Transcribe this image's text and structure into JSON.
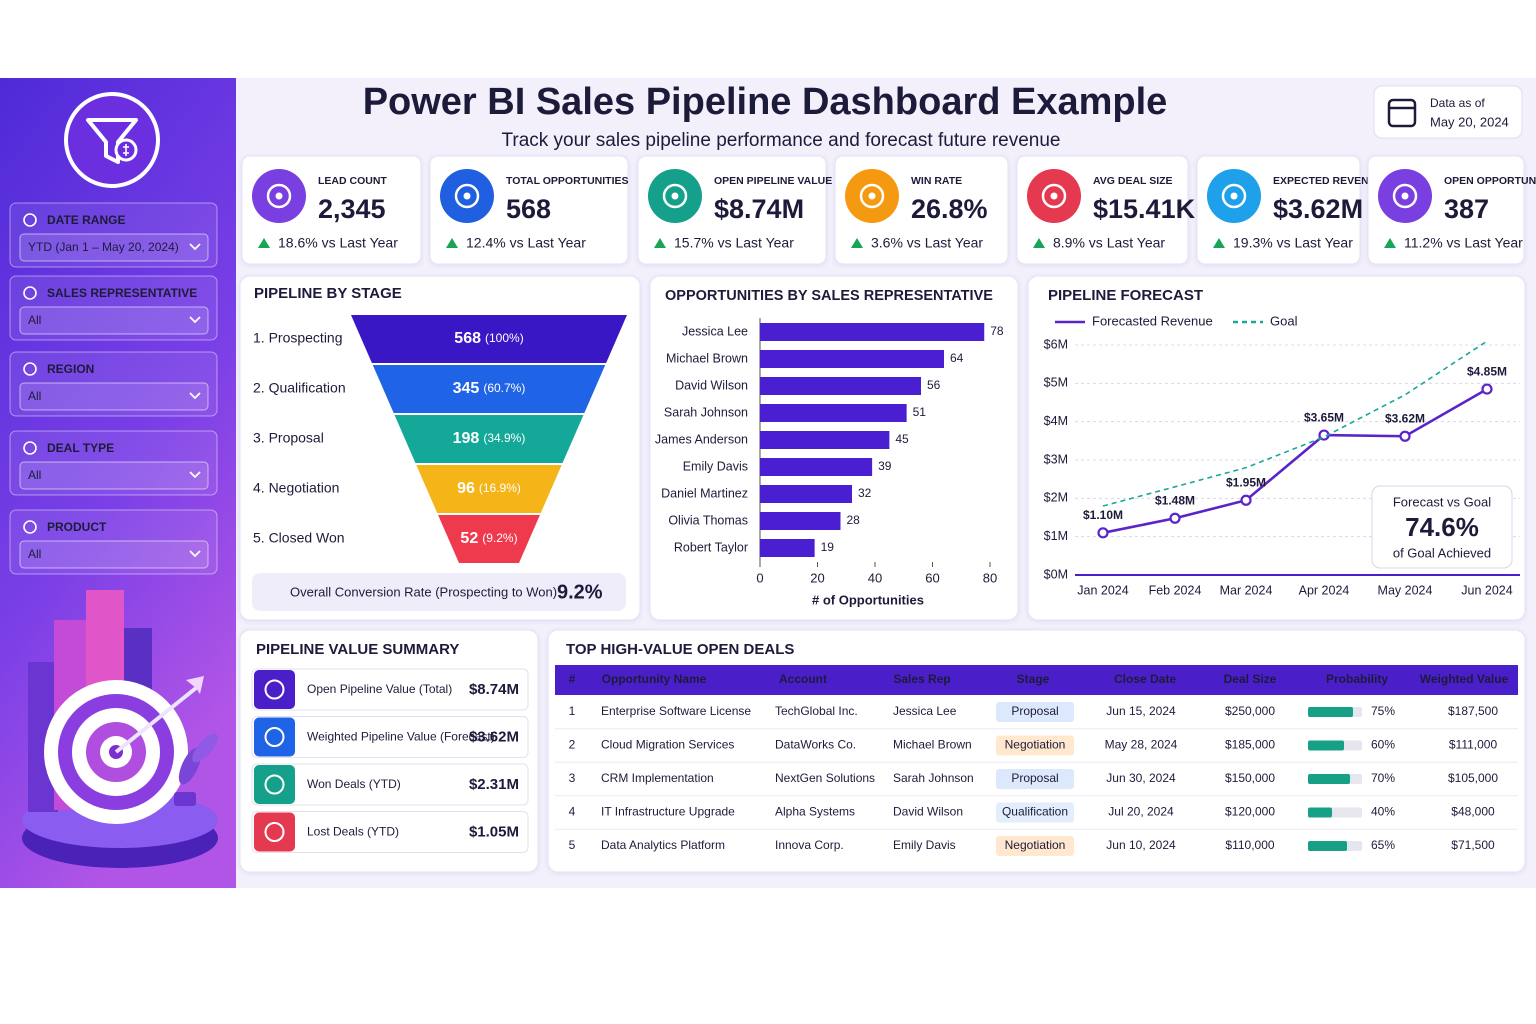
{
  "header": {
    "title": "Power BI Sales Pipeline Dashboard Example",
    "subtitle": "Track your sales pipeline performance and forecast future revenue",
    "date_label": "Data as of",
    "date": "May 20, 2024"
  },
  "filters": [
    {
      "label": "DATE RANGE",
      "value": "YTD (Jan 1 – May 20, 2024)"
    },
    {
      "label": "SALES REPRESENTATIVE",
      "value": "All"
    },
    {
      "label": "REGION",
      "value": "All"
    },
    {
      "label": "DEAL TYPE",
      "value": "All"
    },
    {
      "label": "PRODUCT",
      "value": "All"
    }
  ],
  "kpis": [
    {
      "label": "LEAD COUNT",
      "value": "2,345",
      "change": "18.6% vs Last Year",
      "color": "#7a3fe0"
    },
    {
      "label": "TOTAL OPPORTUNITIES",
      "value": "568",
      "change": "12.4% vs Last Year",
      "color": "#1f5fe0"
    },
    {
      "label": "OPEN PIPELINE VALUE",
      "value": "$8.74M",
      "change": "15.7% vs Last Year",
      "color": "#14a08a"
    },
    {
      "label": "WIN RATE",
      "value": "26.8%",
      "change": "3.6% vs Last Year",
      "color": "#f59a10"
    },
    {
      "label": "AVG DEAL SIZE",
      "value": "$15.41K",
      "change": "8.9% vs Last Year",
      "color": "#e53950"
    },
    {
      "label": "EXPECTED REVENUE",
      "value": "$3.62M",
      "change": "19.3% vs Last Year",
      "color": "#1ea0ea"
    },
    {
      "label": "OPEN OPPORTUNITIES",
      "value": "387",
      "change": "11.2% vs Last Year",
      "color": "#7a3fe0"
    }
  ],
  "chart_data": [
    {
      "type": "funnel",
      "title": "PIPELINE BY STAGE",
      "categories": [
        "1. Prospecting",
        "2. Qualification",
        "3. Proposal",
        "4. Negotiation",
        "5. Closed Won"
      ],
      "values": [
        568,
        345,
        198,
        96,
        52
      ],
      "percents": [
        100,
        60.7,
        34.9,
        16.9,
        9.2
      ],
      "percent_labels": [
        "(100%)",
        "(60.7%)",
        "(34.9%)",
        "(16.9%)",
        "(9.2%)"
      ],
      "colors": [
        "#3a17c4",
        "#1f63e6",
        "#14a898",
        "#f5b417",
        "#ef3a4e"
      ],
      "conversion_label": "Overall Conversion Rate (Prospecting to Won):",
      "conversion_value": "9.2%"
    },
    {
      "type": "bar",
      "orientation": "horizontal",
      "title": "OPPORTUNITIES BY SALES REPRESENTATIVE",
      "categories": [
        "Jessica Lee",
        "Michael Brown",
        "David Wilson",
        "Sarah Johnson",
        "James Anderson",
        "Emily Davis",
        "Daniel Martinez",
        "Olivia Thomas",
        "Robert Taylor"
      ],
      "values": [
        78,
        64,
        56,
        51,
        45,
        39,
        32,
        28,
        19
      ],
      "color": "#4a1fd1",
      "xlim": [
        0,
        80
      ],
      "xticks": [
        0,
        20,
        40,
        60,
        80
      ],
      "x_label": "# of Opportunities"
    },
    {
      "type": "line",
      "title": "PIPELINE FORECAST",
      "categories": [
        "Jan 2024",
        "Feb 2024",
        "Mar 2024",
        "Apr 2024",
        "May 2024",
        "Jun 2024"
      ],
      "series": [
        {
          "name": "Forecasted Revenue",
          "color": "#5a24c9",
          "values": [
            1.1,
            1.48,
            1.95,
            3.65,
            3.62,
            4.85
          ],
          "value_labels": [
            "$1.10M",
            "$1.48M",
            "$1.95M",
            "$3.65M",
            "$3.62M",
            "$4.85M"
          ]
        },
        {
          "name": "Goal",
          "color": "#1aa89a",
          "dashed": true,
          "values": [
            1.8,
            2.3,
            2.8,
            3.6,
            4.7,
            6.1
          ]
        }
      ],
      "ylim": [
        0,
        6.2
      ],
      "yticks": [
        {
          "value": 0,
          "label": "$0M"
        },
        {
          "value": 1,
          "label": "$1M"
        },
        {
          "value": 2,
          "label": "$2M"
        },
        {
          "value": 3,
          "label": "$3M"
        },
        {
          "value": 4,
          "label": "$4M"
        },
        {
          "value": 5,
          "label": "$5M"
        },
        {
          "value": 6,
          "label": "$6M"
        }
      ],
      "grid": true,
      "annotation": {
        "title": "Forecast vs Goal",
        "value": "74.6%",
        "note": "of Goal Achieved"
      }
    }
  ],
  "summary": {
    "title": "PIPELINE VALUE SUMMARY",
    "items": [
      {
        "label": "Open Pipeline Value (Total)",
        "value": "$8.74M",
        "color": "#4a1fc9"
      },
      {
        "label": "Weighted Pipeline Value (Forecast)",
        "value": "$3.62M",
        "color": "#1f63e6"
      },
      {
        "label": "Won Deals (YTD)",
        "value": "$2.31M",
        "color": "#14a08a"
      },
      {
        "label": "Lost Deals (YTD)",
        "value": "$1.05M",
        "color": "#e53950"
      }
    ]
  },
  "deals": {
    "title": "TOP HIGH-VALUE OPEN DEALS",
    "columns": [
      "#",
      "Opportunity Name",
      "Account",
      "Sales Rep",
      "Stage",
      "Close Date",
      "Deal Size",
      "Probability",
      "Weighted Value"
    ],
    "rows": [
      [
        1,
        "Enterprise Software License",
        "TechGlobal Inc.",
        "Jessica Lee",
        {
          "text": "Proposal",
          "color": "#2f5fd0",
          "background": "#dce8fb"
        },
        "Jun 15, 2024",
        "$250,000",
        {
          "value": 75,
          "label": "75%"
        },
        "$187,500"
      ],
      [
        2,
        "Cloud Migration Services",
        "DataWorks Co.",
        "Michael Brown",
        {
          "text": "Negotiation",
          "color": "#e0701a",
          "background": "#ffe8cf"
        },
        "May 28, 2024",
        "$185,000",
        {
          "value": 60,
          "label": "60%"
        },
        "$111,000"
      ],
      [
        3,
        "CRM Implementation",
        "NextGen Solutions",
        "Sarah Johnson",
        {
          "text": "Proposal",
          "color": "#2f5fd0",
          "background": "#dce8fb"
        },
        "Jun 30, 2024",
        "$150,000",
        {
          "value": 70,
          "label": "70%"
        },
        "$105,000"
      ],
      [
        4,
        "IT Infrastructure Upgrade",
        "Alpha Systems",
        "David Wilson",
        {
          "text": "Qualification",
          "color": "#3a7bd5",
          "background": "#e2eefc"
        },
        "Jul 20, 2024",
        "$120,000",
        {
          "value": 40,
          "label": "40%"
        },
        "$48,000"
      ],
      [
        5,
        "Data Analytics Platform",
        "Innova Corp.",
        "Emily Davis",
        {
          "text": "Negotiation",
          "color": "#e0701a",
          "background": "#ffe8cf"
        },
        "Jun 10, 2024",
        "$110,000",
        {
          "value": 65,
          "label": "65%"
        },
        "$71,500"
      ]
    ]
  }
}
